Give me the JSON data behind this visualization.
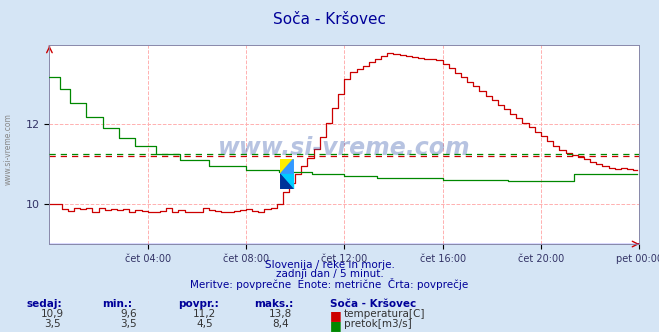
{
  "title": "Soča - Kršovec",
  "background_color": "#d5e5f5",
  "plot_bg_color": "#ffffff",
  "grid_color": "#ffb0b0",
  "x_ticks_labels": [
    "čet 04:00",
    "čet 08:00",
    "čet 12:00",
    "čet 16:00",
    "čet 20:00",
    "pet 00:00"
  ],
  "x_ticks_pos": [
    48,
    96,
    144,
    192,
    240,
    288
  ],
  "total_points": 288,
  "temp_ylim": [
    9.0,
    14.0
  ],
  "temp_yticks": [
    10,
    12
  ],
  "temp_avg": 11.2,
  "flow_avg": 4.5,
  "temp_color": "#cc0000",
  "flow_color": "#008800",
  "blue_line_color": "#4444ff",
  "subtitle_lines": [
    "Slovenija / reke in morje.",
    "zadnji dan / 5 minut.",
    "Meritve: povprečne  Enote: metrične  Črta: povprečje"
  ],
  "footer_headers": [
    "sedaj:",
    "min.:",
    "povpr.:",
    "maks.:",
    "Soča - Kršovec"
  ],
  "footer_row1": [
    "10,9",
    "9,6",
    "11,2",
    "13,8",
    "temperatura[C]"
  ],
  "footer_row2": [
    "3,5",
    "3,5",
    "4,5",
    "8,4",
    "pretok[m3/s]"
  ],
  "watermark": "www.si-vreme.com",
  "side_label": "www.si-vreme.com"
}
